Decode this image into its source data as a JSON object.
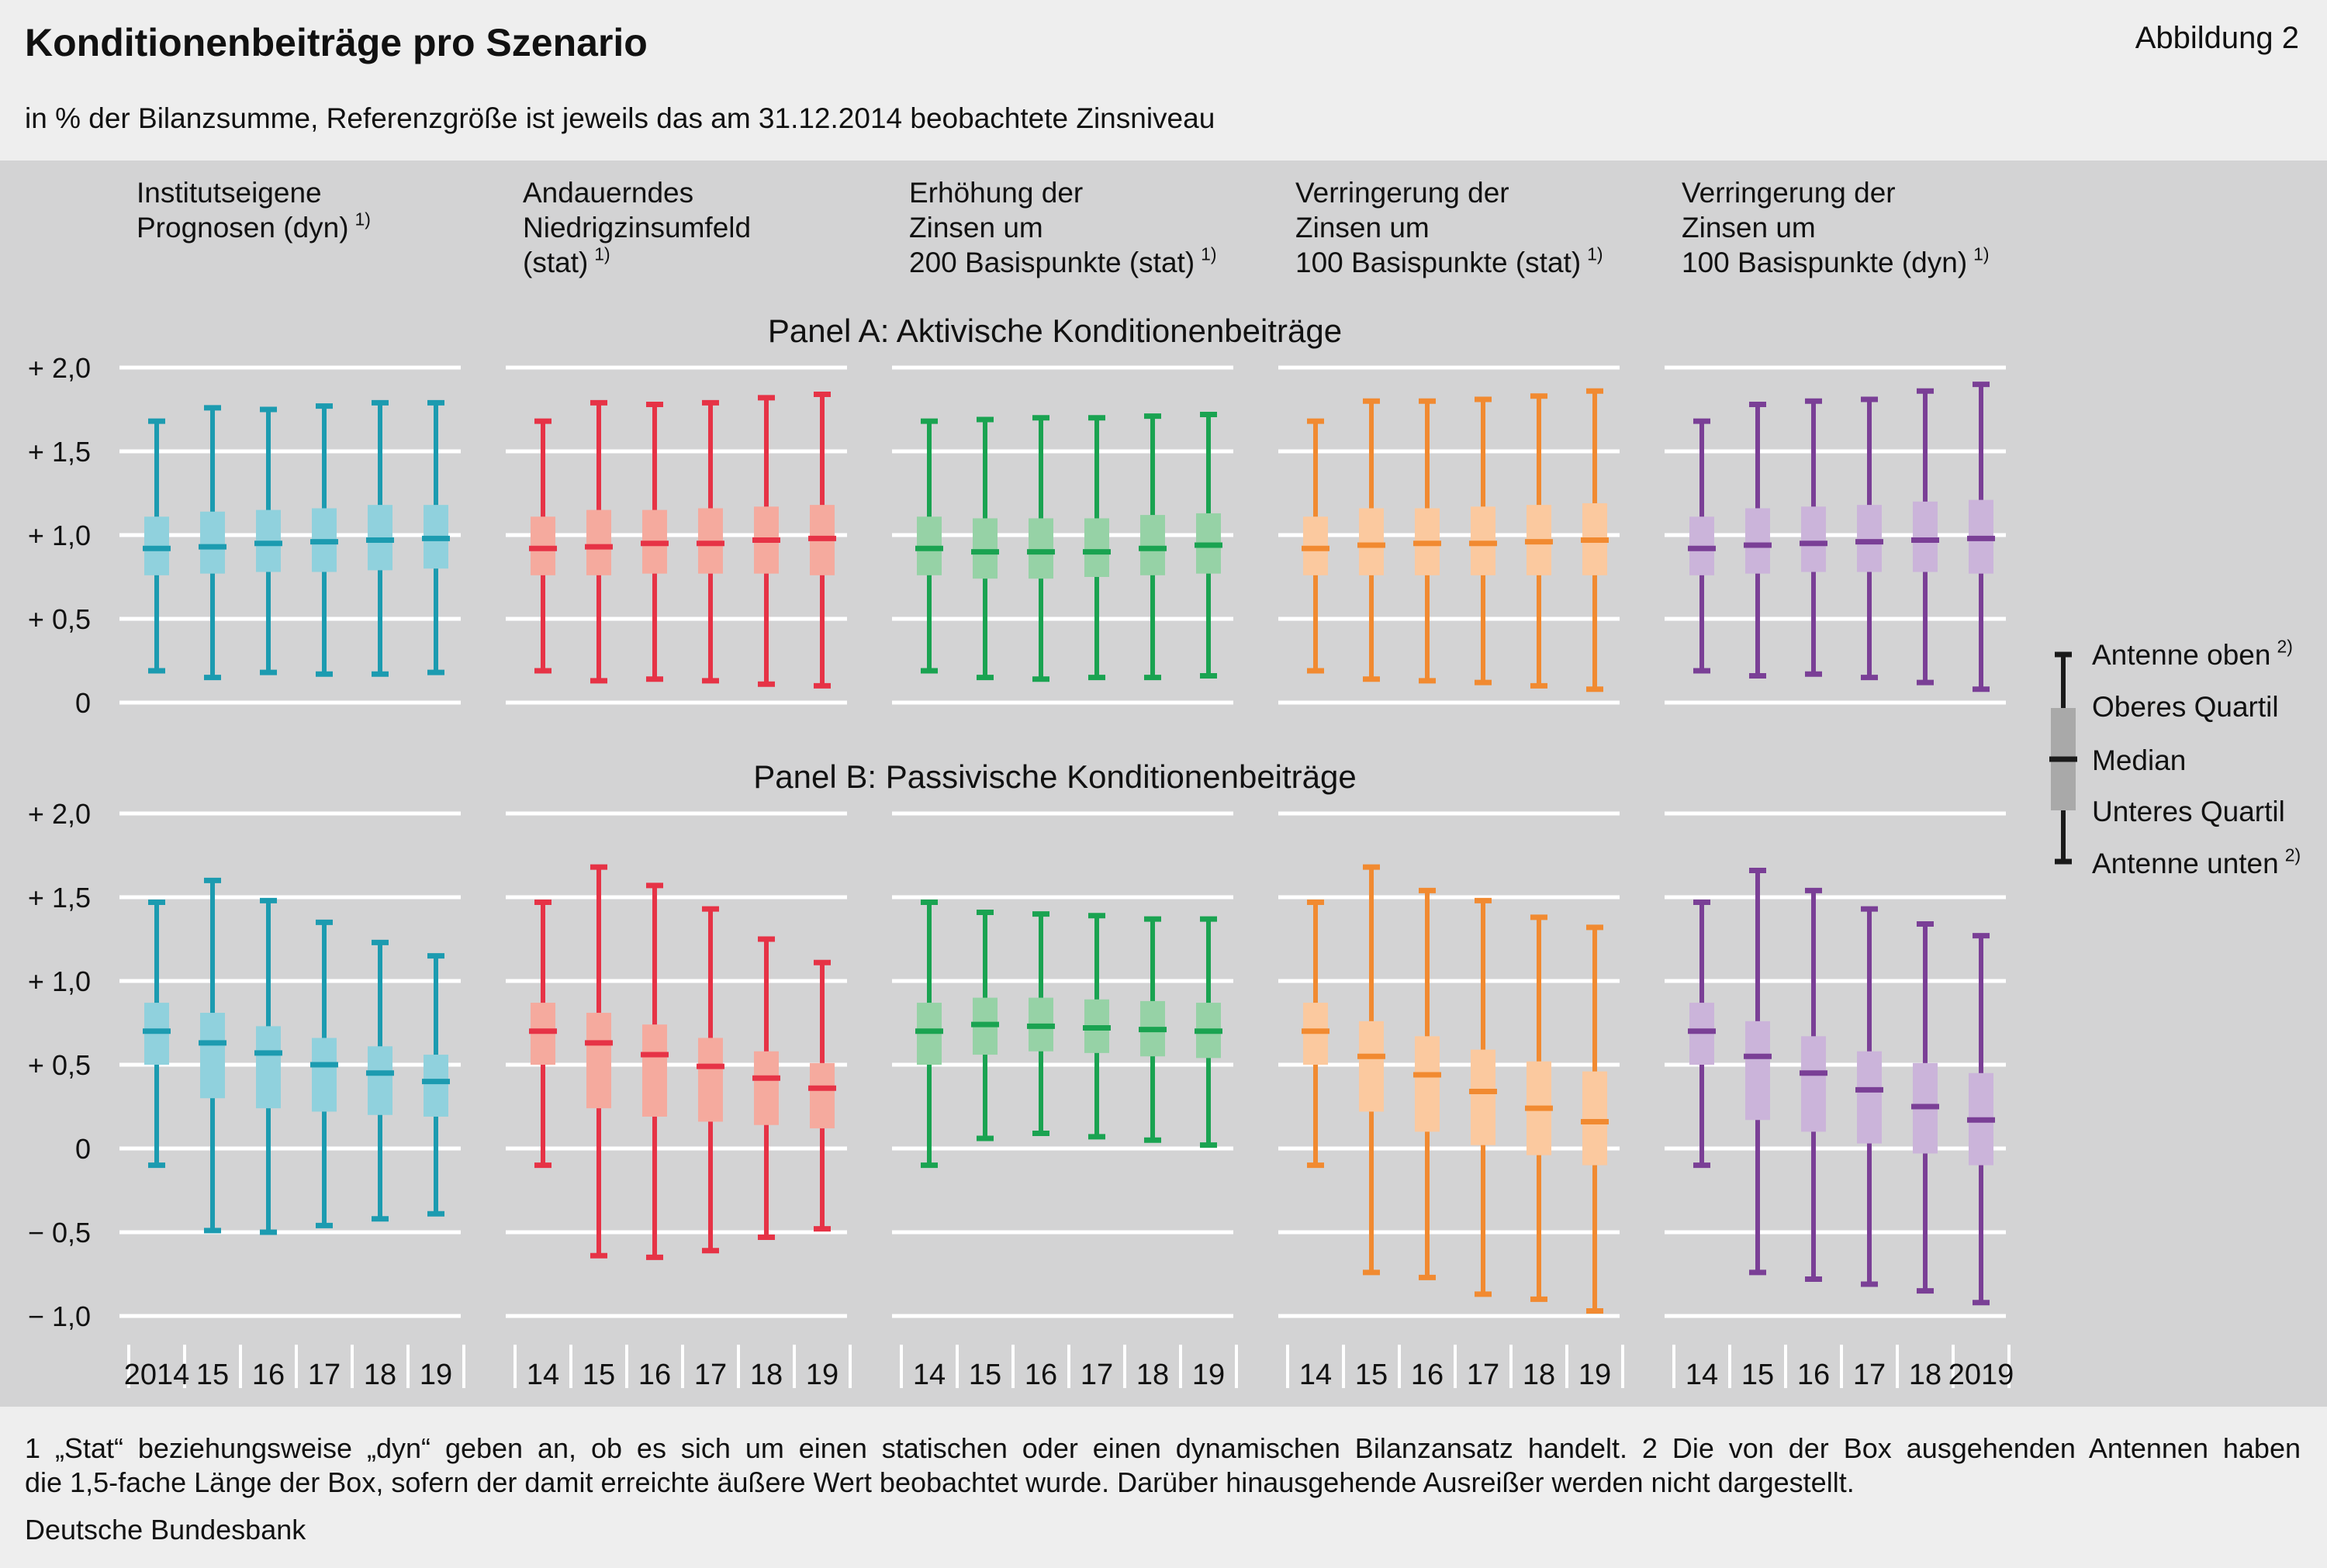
{
  "header": {
    "title": "Konditionenbeiträge pro Szenario",
    "figure_label": "Abbildung 2",
    "subtitle": "in % der Bilanzsumme, Referenzgröße ist jeweils das am 31.12.2014 beobachtete Zinsniveau"
  },
  "footer": {
    "note_1": "1 „Stat“ beziehungsweise „dyn“ geben an, ob es sich um einen statischen oder einen dynamischen Bilanzansatz handelt. 2 Die von der Box ausgehenden Antennen haben",
    "note_2": "die 1,5-fache Länge der Box, sofern der damit erreichte äußere Wert beobachtet wurde. Darüber hinausgehende Ausreißer werden nicht dargestellt.",
    "source": "Deutsche Bundesbank"
  },
  "colors": {
    "background": "#d3d3d4",
    "gridline": "#ffffff",
    "legend": "#1a1a1a",
    "legend_box": "#a9a9a9"
  },
  "chart_data": {
    "type": "boxplot",
    "ylim": [
      -1.0,
      2.0
    ],
    "grid": true,
    "legend_placement": "right",
    "legend": [
      {
        "label": "Antenne oben",
        "sup": "2)"
      },
      {
        "label": "Oberes Quartil",
        "sup": ""
      },
      {
        "label": "Median",
        "sup": ""
      },
      {
        "label": "Unteres Quartil",
        "sup": ""
      },
      {
        "label": "Antenne unten",
        "sup": "2)"
      }
    ],
    "panel_a": {
      "title": "Panel A: Aktivische Konditionenbeiträge",
      "y_ticks": [
        0,
        0.5,
        1.0,
        1.5,
        2.0
      ],
      "y_tick_labels": [
        "0",
        "+ 0,5",
        "+ 1,0",
        "+ 1,5",
        "+ 2,0"
      ]
    },
    "panel_b": {
      "title": "Panel B: Passivische Konditionenbeiträge",
      "y_ticks": [
        -1.0,
        -0.5,
        0,
        0.5,
        1.0,
        1.5,
        2.0
      ],
      "y_tick_labels": [
        "− 1,0",
        "− 0,5",
        "0",
        "+ 0,5",
        "+ 1,0",
        "+ 1,5",
        "+ 2,0"
      ]
    },
    "scenarios": [
      {
        "title_lines": [
          "Institutseigene",
          "Prognosen (dyn)"
        ],
        "title_sup": "1)",
        "color": "#1c9bb0",
        "box_color": "#90d1dd",
        "x_labels": [
          "2014",
          "15",
          "16",
          "17",
          "18",
          "19"
        ],
        "panel_a": [
          [
            0.19,
            0.76,
            0.92,
            1.11,
            1.68
          ],
          [
            0.15,
            0.77,
            0.93,
            1.14,
            1.76
          ],
          [
            0.18,
            0.78,
            0.95,
            1.15,
            1.75
          ],
          [
            0.17,
            0.78,
            0.96,
            1.16,
            1.77
          ],
          [
            0.17,
            0.79,
            0.97,
            1.18,
            1.79
          ],
          [
            0.18,
            0.8,
            0.98,
            1.18,
            1.79
          ]
        ],
        "panel_b": [
          [
            -0.1,
            0.5,
            0.7,
            0.87,
            1.47
          ],
          [
            -0.49,
            0.3,
            0.63,
            0.81,
            1.6
          ],
          [
            -0.5,
            0.24,
            0.57,
            0.73,
            1.48
          ],
          [
            -0.46,
            0.22,
            0.5,
            0.66,
            1.35
          ],
          [
            -0.42,
            0.2,
            0.45,
            0.61,
            1.23
          ],
          [
            -0.39,
            0.19,
            0.4,
            0.56,
            1.15
          ]
        ]
      },
      {
        "title_lines": [
          "Andauerndes",
          "Niedrigzinsumfeld",
          "(stat)"
        ],
        "title_sup": "1)",
        "color": "#e63346",
        "box_color": "#f5aa9e",
        "x_labels": [
          "14",
          "15",
          "16",
          "17",
          "18",
          "19"
        ],
        "panel_a": [
          [
            0.19,
            0.76,
            0.92,
            1.11,
            1.68
          ],
          [
            0.13,
            0.76,
            0.93,
            1.15,
            1.79
          ],
          [
            0.14,
            0.77,
            0.95,
            1.15,
            1.78
          ],
          [
            0.13,
            0.77,
            0.95,
            1.16,
            1.79
          ],
          [
            0.11,
            0.77,
            0.97,
            1.17,
            1.82
          ],
          [
            0.1,
            0.76,
            0.98,
            1.18,
            1.84
          ]
        ],
        "panel_b": [
          [
            -0.1,
            0.5,
            0.7,
            0.87,
            1.47
          ],
          [
            -0.64,
            0.24,
            0.63,
            0.81,
            1.68
          ],
          [
            -0.65,
            0.19,
            0.56,
            0.74,
            1.57
          ],
          [
            -0.61,
            0.16,
            0.49,
            0.66,
            1.43
          ],
          [
            -0.53,
            0.14,
            0.42,
            0.58,
            1.25
          ],
          [
            -0.48,
            0.12,
            0.36,
            0.51,
            1.11
          ]
        ]
      },
      {
        "title_lines": [
          "Erhöhung der",
          "Zinsen um",
          "200 Basispunkte (stat)"
        ],
        "title_sup": "1)",
        "color": "#1aa351",
        "box_color": "#96d2a6",
        "x_labels": [
          "14",
          "15",
          "16",
          "17",
          "18",
          "19"
        ],
        "panel_a": [
          [
            0.19,
            0.76,
            0.92,
            1.11,
            1.68
          ],
          [
            0.15,
            0.74,
            0.9,
            1.1,
            1.69
          ],
          [
            0.14,
            0.74,
            0.9,
            1.1,
            1.7
          ],
          [
            0.15,
            0.75,
            0.9,
            1.1,
            1.7
          ],
          [
            0.15,
            0.76,
            0.92,
            1.12,
            1.71
          ],
          [
            0.16,
            0.77,
            0.94,
            1.13,
            1.72
          ]
        ],
        "panel_b": [
          [
            -0.1,
            0.5,
            0.7,
            0.87,
            1.47
          ],
          [
            0.06,
            0.56,
            0.74,
            0.9,
            1.41
          ],
          [
            0.09,
            0.58,
            0.73,
            0.9,
            1.4
          ],
          [
            0.07,
            0.57,
            0.72,
            0.89,
            1.39
          ],
          [
            0.05,
            0.55,
            0.71,
            0.88,
            1.37
          ],
          [
            0.02,
            0.54,
            0.7,
            0.87,
            1.37
          ]
        ]
      },
      {
        "title_lines": [
          "Verringerung der",
          "Zinsen um",
          "100 Basispunkte (stat)"
        ],
        "title_sup": "1)",
        "color": "#f18a31",
        "box_color": "#fbc99f",
        "x_labels": [
          "14",
          "15",
          "16",
          "17",
          "18",
          "19"
        ],
        "panel_a": [
          [
            0.19,
            0.76,
            0.92,
            1.11,
            1.68
          ],
          [
            0.14,
            0.76,
            0.94,
            1.16,
            1.8
          ],
          [
            0.13,
            0.76,
            0.95,
            1.16,
            1.8
          ],
          [
            0.12,
            0.76,
            0.95,
            1.17,
            1.81
          ],
          [
            0.1,
            0.76,
            0.96,
            1.18,
            1.83
          ],
          [
            0.08,
            0.76,
            0.97,
            1.19,
            1.86
          ]
        ],
        "panel_b": [
          [
            -0.1,
            0.5,
            0.7,
            0.87,
            1.47
          ],
          [
            -0.74,
            0.22,
            0.55,
            0.76,
            1.68
          ],
          [
            -0.77,
            0.1,
            0.44,
            0.67,
            1.54
          ],
          [
            -0.87,
            0.02,
            0.34,
            0.59,
            1.48
          ],
          [
            -0.9,
            -0.04,
            0.24,
            0.52,
            1.38
          ],
          [
            -0.97,
            -0.1,
            0.16,
            0.46,
            1.32
          ]
        ]
      },
      {
        "title_lines": [
          "Verringerung der",
          "Zinsen um",
          "100 Basispunkte (dyn)"
        ],
        "title_sup": "1)",
        "color": "#7a3f96",
        "box_color": "#cbb4da",
        "x_labels": [
          "14",
          "15",
          "16",
          "17",
          "18",
          "2019"
        ],
        "panel_a": [
          [
            0.19,
            0.76,
            0.92,
            1.11,
            1.68
          ],
          [
            0.16,
            0.77,
            0.94,
            1.16,
            1.78
          ],
          [
            0.17,
            0.78,
            0.95,
            1.17,
            1.8
          ],
          [
            0.15,
            0.78,
            0.96,
            1.18,
            1.81
          ],
          [
            0.12,
            0.78,
            0.97,
            1.2,
            1.86
          ],
          [
            0.08,
            0.77,
            0.98,
            1.21,
            1.9
          ]
        ],
        "panel_b": [
          [
            -0.1,
            0.5,
            0.7,
            0.87,
            1.47
          ],
          [
            -0.74,
            0.17,
            0.55,
            0.76,
            1.66
          ],
          [
            -0.78,
            0.1,
            0.45,
            0.67,
            1.54
          ],
          [
            -0.81,
            0.03,
            0.35,
            0.58,
            1.43
          ],
          [
            -0.85,
            -0.03,
            0.25,
            0.51,
            1.34
          ],
          [
            -0.92,
            -0.1,
            0.17,
            0.45,
            1.27
          ]
        ]
      }
    ]
  }
}
